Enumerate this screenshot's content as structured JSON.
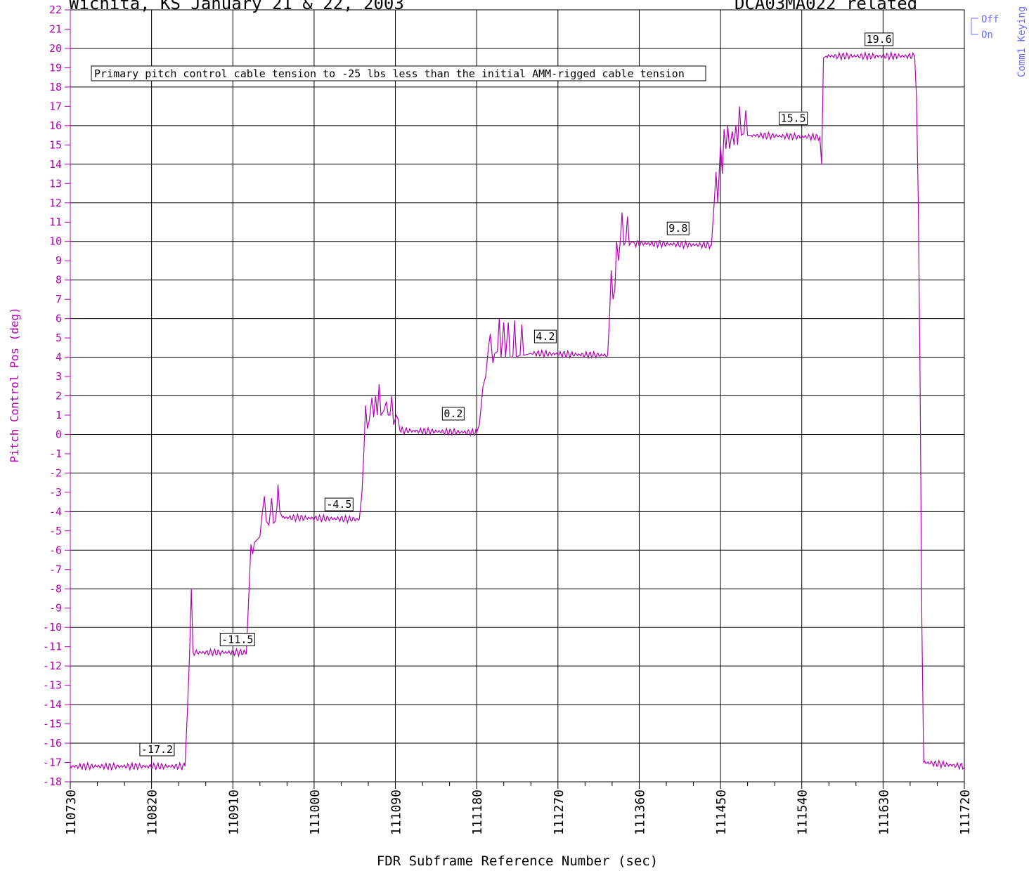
{
  "header": {
    "left_title": "Wichita, KS January 21 & 22, 2003",
    "right_title": "DCA03MA022 related"
  },
  "chart_data": {
    "type": "line",
    "xlabel": "FDR Subframe Reference Number (sec)",
    "ylabel": "Pitch Control Pos (deg)",
    "xlim": [
      110730,
      111720
    ],
    "ylim": [
      -18,
      22
    ],
    "x_ticks": [
      110730,
      110820,
      110910,
      111000,
      111090,
      111180,
      111270,
      111360,
      111450,
      111540,
      111630,
      111720
    ],
    "y_ticks": [
      -18,
      -17,
      -16,
      -15,
      -14,
      -13,
      -12,
      -11,
      -10,
      -9,
      -8,
      -7,
      -6,
      -5,
      -4,
      -3,
      -2,
      -1,
      0,
      1,
      2,
      3,
      4,
      5,
      6,
      7,
      8,
      9,
      10,
      11,
      12,
      13,
      14,
      15,
      16,
      17,
      18,
      19,
      20,
      21,
      22
    ],
    "grid": true,
    "line_color": "#b400b4",
    "annotation": "Primary pitch control cable tension to -25 lbs less than the initial AMM-rigged cable tension",
    "right_axis": {
      "title": "Comm1 Keying",
      "states": [
        "Off",
        "On"
      ],
      "color": "#6c6cff"
    },
    "value_labels": [
      {
        "x": 110807,
        "y": -17.2,
        "text": "-17.2"
      },
      {
        "x": 110896,
        "y": -11.5,
        "text": "-11.5"
      },
      {
        "x": 111012,
        "y": -4.5,
        "text": "-4.5"
      },
      {
        "x": 111142,
        "y": 0.2,
        "text": "0.2"
      },
      {
        "x": 111244,
        "y": 4.2,
        "text": "4.2"
      },
      {
        "x": 111391,
        "y": 9.8,
        "text": "9.8"
      },
      {
        "x": 111515,
        "y": 15.5,
        "text": "15.5"
      },
      {
        "x": 111610,
        "y": 19.6,
        "text": "19.6"
      }
    ],
    "series": [
      {
        "points": [
          [
            110730,
            -17.2
          ],
          [
            110857,
            -17.2
          ],
          [
            110860,
            -14.0
          ],
          [
            110862,
            -11.5
          ],
          [
            110864,
            -8.0
          ],
          [
            110866,
            -11.3
          ],
          [
            110925,
            -11.3
          ],
          [
            110928,
            -8.0
          ],
          [
            110930,
            -5.7
          ],
          [
            110932,
            -6.2
          ],
          [
            110934,
            -5.6
          ],
          [
            110940,
            -5.3
          ],
          [
            110942,
            -4.3
          ],
          [
            110945,
            -3.2
          ],
          [
            110947,
            -4.5
          ],
          [
            110950,
            -4.7
          ],
          [
            110953,
            -3.3
          ],
          [
            110955,
            -4.6
          ],
          [
            110957,
            -4.5
          ],
          [
            110959,
            -3.7
          ],
          [
            110960,
            -2.6
          ],
          [
            110962,
            -4.0
          ],
          [
            110965,
            -4.3
          ],
          [
            111050,
            -4.4
          ],
          [
            111053,
            -3.0
          ],
          [
            111055,
            -1.0
          ],
          [
            111057,
            1.5
          ],
          [
            111059,
            0.3
          ],
          [
            111061,
            0.7
          ],
          [
            111064,
            1.9
          ],
          [
            111066,
            0.9
          ],
          [
            111068,
            2.0
          ],
          [
            111070,
            1.0
          ],
          [
            111072,
            2.6
          ],
          [
            111074,
            1.0
          ],
          [
            111077,
            1.2
          ],
          [
            111080,
            1.7
          ],
          [
            111082,
            1.0
          ],
          [
            111084,
            1.0
          ],
          [
            111086,
            2.0
          ],
          [
            111088,
            0.5
          ],
          [
            111091,
            1.0
          ],
          [
            111093,
            0.8
          ],
          [
            111095,
            0.2
          ],
          [
            111180,
            0.1
          ],
          [
            111183,
            0.5
          ],
          [
            111187,
            2.5
          ],
          [
            111190,
            3.0
          ],
          [
            111193,
            4.5
          ],
          [
            111195,
            5.2
          ],
          [
            111198,
            3.7
          ],
          [
            111200,
            4.2
          ],
          [
            111203,
            4.3
          ],
          [
            111205,
            6.0
          ],
          [
            111207,
            4.0
          ],
          [
            111210,
            5.8
          ],
          [
            111212,
            4.0
          ],
          [
            111215,
            5.8
          ],
          [
            111217,
            4.0
          ],
          [
            111220,
            4.0
          ],
          [
            111222,
            5.9
          ],
          [
            111224,
            4.0
          ],
          [
            111228,
            4.1
          ],
          [
            111230,
            5.7
          ],
          [
            111232,
            4.1
          ],
          [
            111240,
            4.2
          ],
          [
            111325,
            4.1
          ],
          [
            111327,
            6.0
          ],
          [
            111329,
            8.5
          ],
          [
            111331,
            7.0
          ],
          [
            111333,
            7.5
          ],
          [
            111335,
            10.0
          ],
          [
            111337,
            9.0
          ],
          [
            111339,
            10.0
          ],
          [
            111341,
            11.5
          ],
          [
            111343,
            9.8
          ],
          [
            111345,
            10.0
          ],
          [
            111347,
            11.3
          ],
          [
            111349,
            9.8
          ],
          [
            111352,
            10.0
          ],
          [
            111355,
            9.9
          ],
          [
            111440,
            9.8
          ],
          [
            111443,
            12.0
          ],
          [
            111445,
            13.6
          ],
          [
            111447,
            12.0
          ],
          [
            111450,
            15.0
          ],
          [
            111452,
            13.5
          ],
          [
            111454,
            15.8
          ],
          [
            111456,
            14.8
          ],
          [
            111458,
            16.0
          ],
          [
            111460,
            14.8
          ],
          [
            111463,
            15.7
          ],
          [
            111465,
            15.0
          ],
          [
            111467,
            16.0
          ],
          [
            111469,
            15.0
          ],
          [
            111471,
            17.0
          ],
          [
            111473,
            15.5
          ],
          [
            111476,
            15.6
          ],
          [
            111478,
            16.8
          ],
          [
            111480,
            15.5
          ],
          [
            111484,
            15.5
          ],
          [
            111560,
            15.4
          ],
          [
            111562,
            14.0
          ],
          [
            111564,
            19.5
          ],
          [
            111567,
            19.6
          ],
          [
            111665,
            19.6
          ],
          [
            111667,
            17.5
          ],
          [
            111669,
            12.0
          ],
          [
            111671,
            3.0
          ],
          [
            111673,
            -10.0
          ],
          [
            111675,
            -17.0
          ],
          [
            111720,
            -17.2
          ]
        ]
      }
    ]
  }
}
